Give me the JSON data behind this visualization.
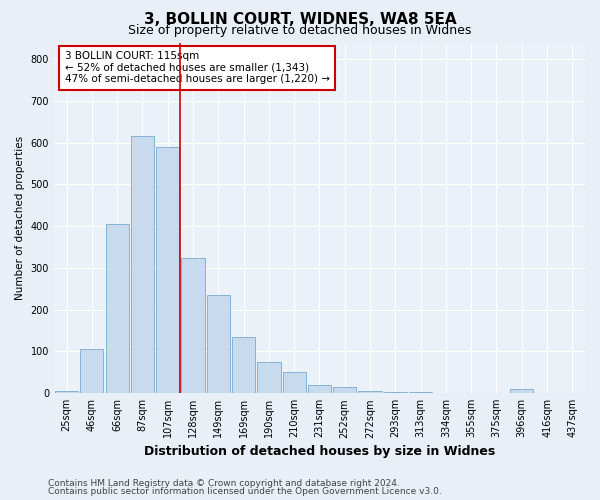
{
  "title": "3, BOLLIN COURT, WIDNES, WA8 5EA",
  "subtitle": "Size of property relative to detached houses in Widnes",
  "xlabel": "Distribution of detached houses by size in Widnes",
  "ylabel": "Number of detached properties",
  "categories": [
    "25sqm",
    "46sqm",
    "66sqm",
    "87sqm",
    "107sqm",
    "128sqm",
    "149sqm",
    "169sqm",
    "190sqm",
    "210sqm",
    "231sqm",
    "252sqm",
    "272sqm",
    "293sqm",
    "313sqm",
    "334sqm",
    "355sqm",
    "375sqm",
    "396sqm",
    "416sqm",
    "437sqm"
  ],
  "values": [
    5,
    105,
    405,
    615,
    590,
    325,
    235,
    135,
    75,
    50,
    20,
    15,
    5,
    2,
    2,
    0,
    0,
    0,
    10,
    0,
    0
  ],
  "bar_color": "#c8daee",
  "bar_edge_color": "#7aaad0",
  "vline_x": 4.5,
  "vline_color": "#cc0000",
  "annotation_text": "3 BOLLIN COURT: 115sqm\n← 52% of detached houses are smaller (1,343)\n47% of semi-detached houses are larger (1,220) →",
  "annotation_box_color": "#ffffff",
  "annotation_box_edge": "#cc0000",
  "ylim": [
    0,
    840
  ],
  "yticks": [
    0,
    100,
    200,
    300,
    400,
    500,
    600,
    700,
    800
  ],
  "footer_line1": "Contains HM Land Registry data © Crown copyright and database right 2024.",
  "footer_line2": "Contains public sector information licensed under the Open Government Licence v3.0.",
  "bg_color": "#e8eff7",
  "plot_bg_color": "#eaf1f8",
  "grid_color": "#ffffff",
  "title_fontsize": 11,
  "subtitle_fontsize": 9,
  "xlabel_fontsize": 9,
  "ylabel_fontsize": 7.5,
  "tick_fontsize": 7,
  "annot_fontsize": 7.5,
  "footer_fontsize": 6.5
}
